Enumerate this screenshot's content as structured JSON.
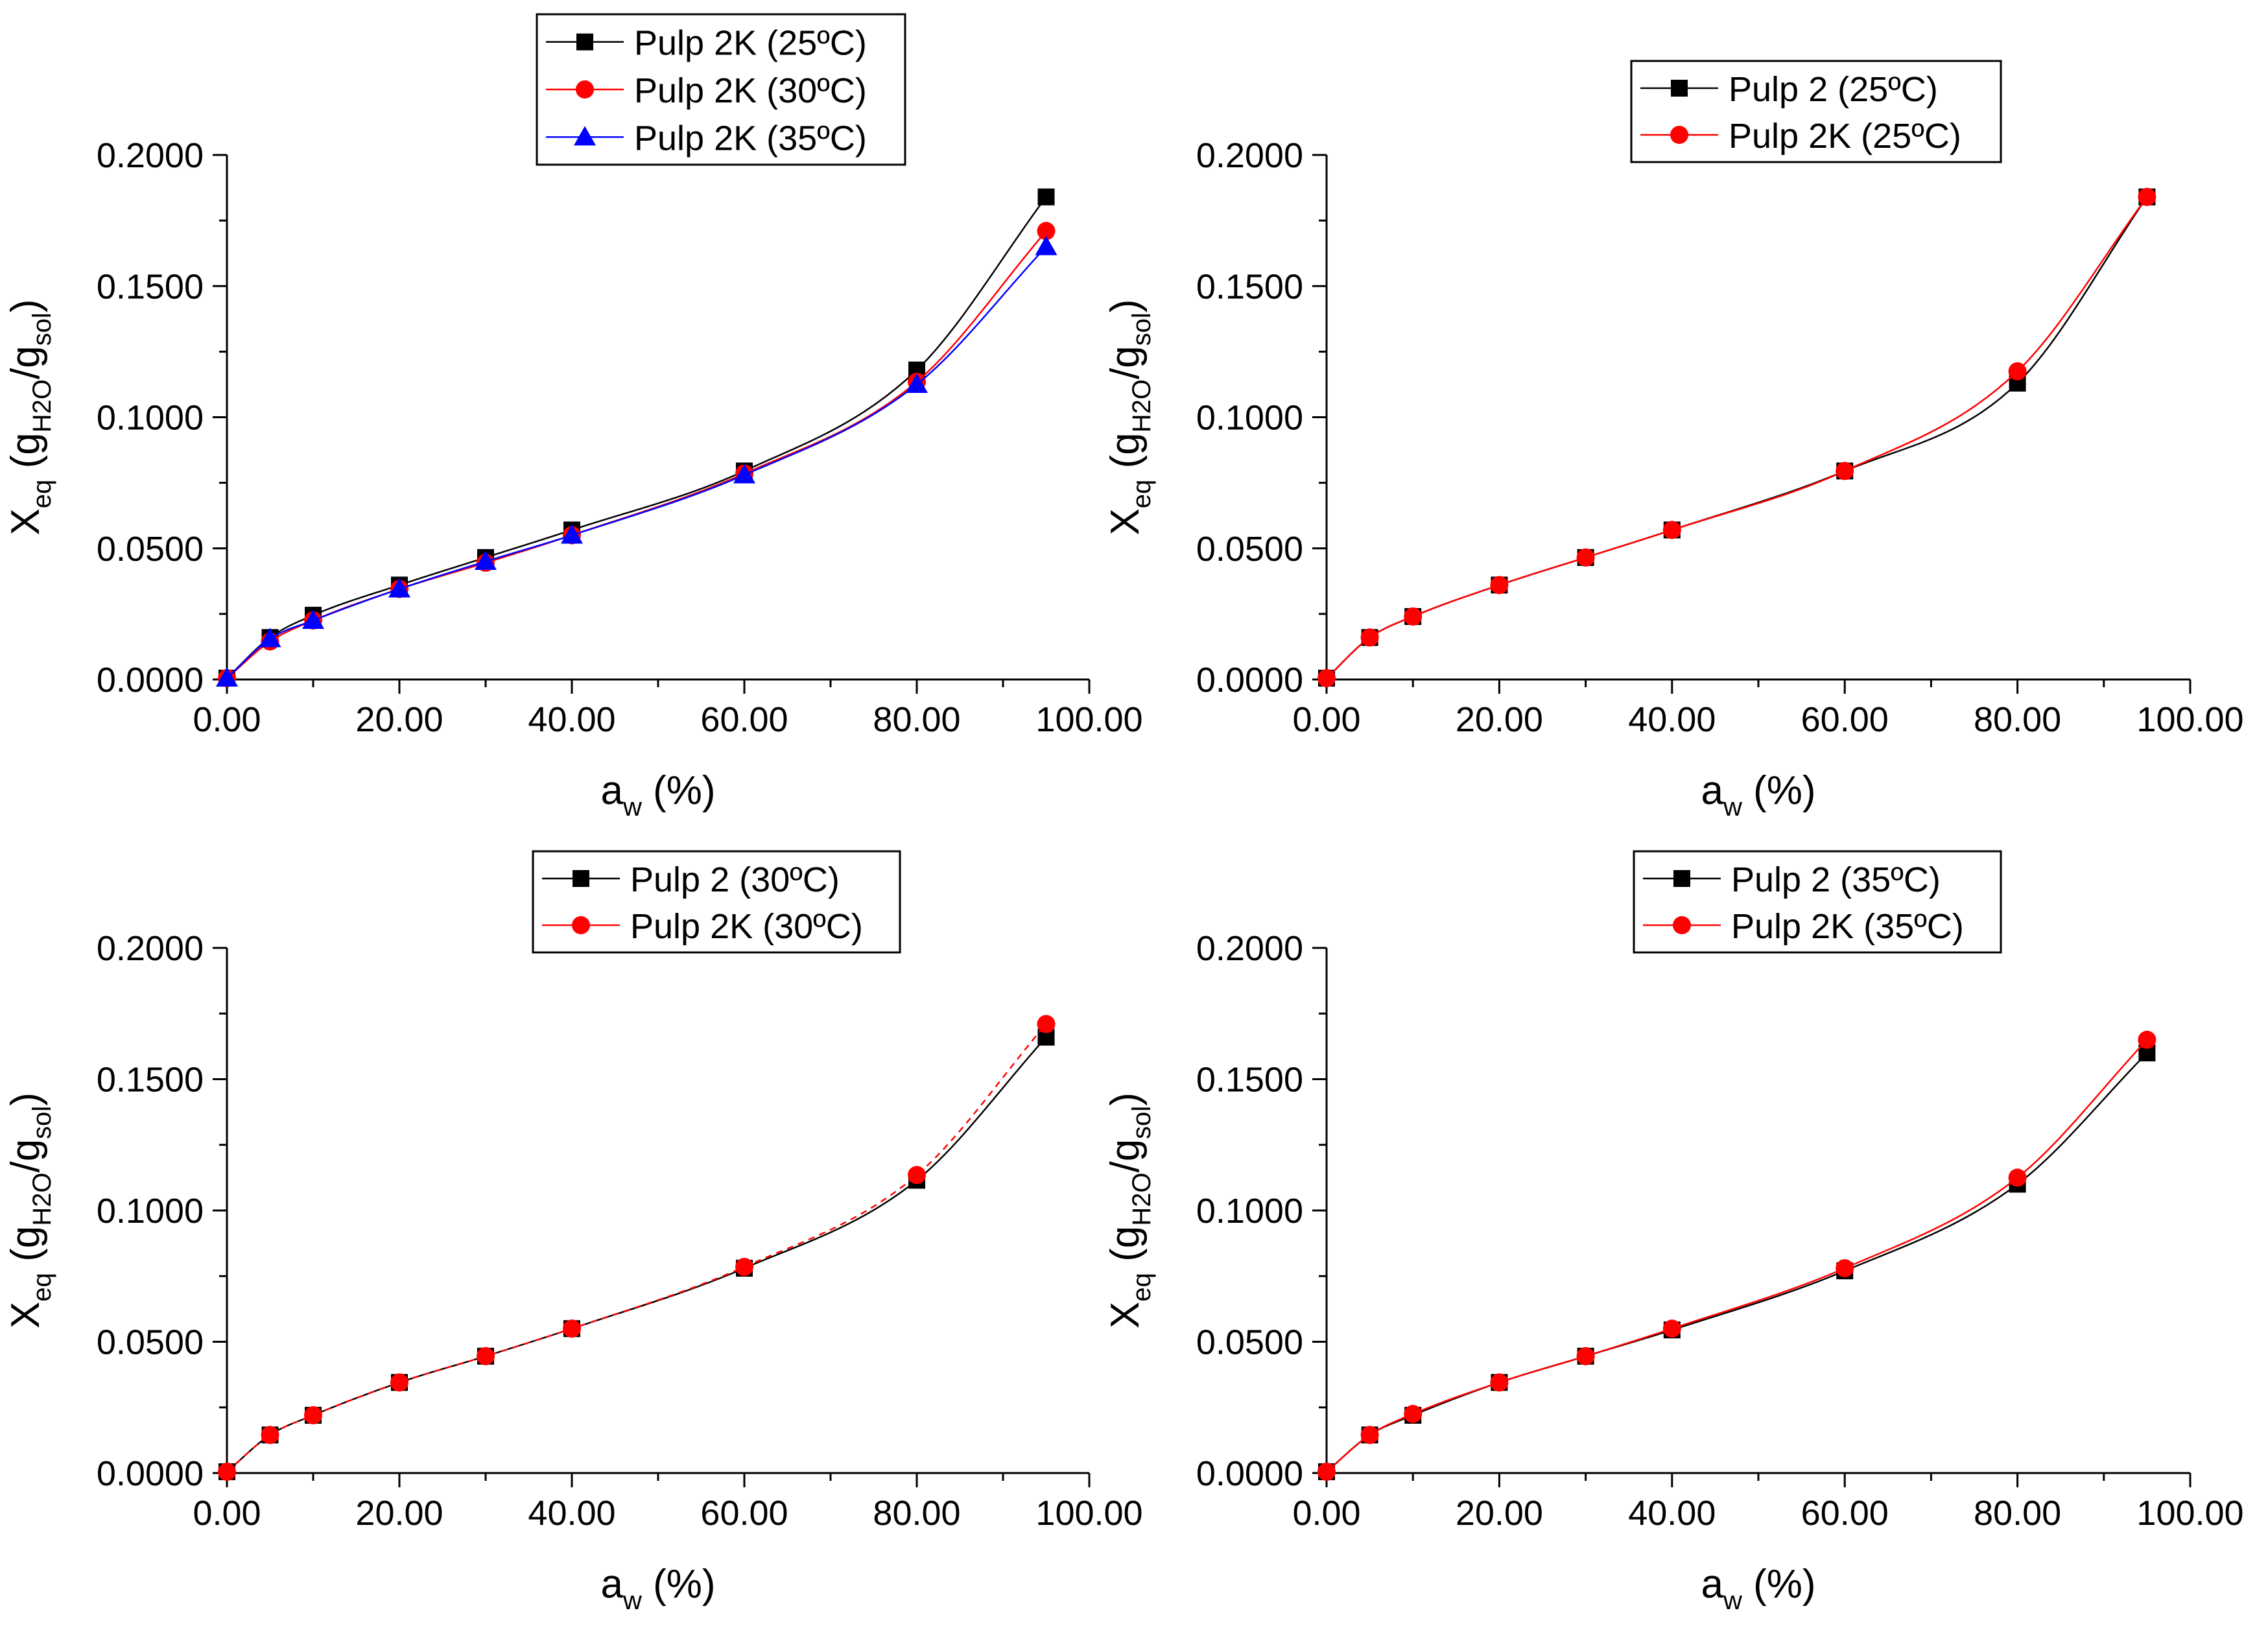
{
  "chart_data": [
    {
      "type": "scatter",
      "xlabel": {
        "main": "a",
        "sub": "w",
        "unit": " (%)"
      },
      "ylabel": {
        "main": "X",
        "sub": "eq",
        "open": " (g",
        "sub2": "H2O",
        "mid": "/g",
        "sub3": "sol",
        "close": ")"
      },
      "xlim": [
        0,
        100
      ],
      "ylim": [
        0,
        0.2
      ],
      "xticks": [
        "0.00",
        "20.00",
        "40.00",
        "60.00",
        "80.00",
        "100.00"
      ],
      "yticks": [
        "0.0000",
        "0.0500",
        "0.1000",
        "0.1500",
        "0.2000"
      ],
      "legend_position": "top-right",
      "x": [
        0,
        5,
        10,
        20,
        30,
        40,
        60,
        80,
        95
      ],
      "series": [
        {
          "name": "Pulp 2K (25ºC)",
          "color": "#000000",
          "marker": "square",
          "values": [
            0.0005,
            0.016,
            0.0245,
            0.036,
            0.0465,
            0.057,
            0.0795,
            0.118,
            0.184
          ]
        },
        {
          "name": "Pulp 2K (30ºC)",
          "color": "#ff0000",
          "marker": "circle",
          "values": [
            0.0005,
            0.0145,
            0.0225,
            0.0345,
            0.0445,
            0.055,
            0.0785,
            0.1135,
            0.171
          ]
        },
        {
          "name": "Pulp 2K (35ºC)",
          "color": "#0000ff",
          "marker": "triangle",
          "values": [
            0.0005,
            0.0155,
            0.0225,
            0.0345,
            0.045,
            0.055,
            0.078,
            0.1125,
            0.165
          ]
        }
      ]
    },
    {
      "type": "scatter",
      "xlabel": {
        "main": "a",
        "sub": "w",
        "unit": " (%)"
      },
      "ylabel": {
        "main": "X",
        "sub": "eq",
        "open": " (g",
        "sub2": "H2O",
        "mid": "/g",
        "sub3": "sol",
        "close": ")"
      },
      "xlim": [
        0,
        100
      ],
      "ylim": [
        0,
        0.2
      ],
      "xticks": [
        "0.00",
        "20.00",
        "40.00",
        "60.00",
        "80.00",
        "100.00"
      ],
      "yticks": [
        "0.0000",
        "0.0500",
        "0.1000",
        "0.1500",
        "0.2000"
      ],
      "legend_position": "top-right",
      "x": [
        0,
        5,
        10,
        20,
        30,
        40,
        60,
        80,
        95
      ],
      "series": [
        {
          "name": "Pulp 2 (25ºC)",
          "color": "#000000",
          "marker": "square",
          "values": [
            0.0005,
            0.016,
            0.024,
            0.036,
            0.0465,
            0.057,
            0.0795,
            0.113,
            0.184
          ]
        },
        {
          "name": "Pulp 2K (25ºC)",
          "color": "#ff0000",
          "marker": "circle",
          "values": [
            0.0005,
            0.016,
            0.024,
            0.036,
            0.0465,
            0.057,
            0.0795,
            0.1175,
            0.184
          ]
        }
      ]
    },
    {
      "type": "scatter",
      "xlabel": {
        "main": "a",
        "sub": "w",
        "unit": " (%)"
      },
      "ylabel": {
        "main": "X",
        "sub": "eq",
        "open": " (g",
        "sub2": "H2O",
        "mid": "/g",
        "sub3": "sol",
        "close": ")"
      },
      "xlim": [
        0,
        100
      ],
      "ylim": [
        0,
        0.2
      ],
      "xticks": [
        "0.00",
        "20.00",
        "40.00",
        "60.00",
        "80.00",
        "100.00"
      ],
      "yticks": [
        "0.0000",
        "0.0500",
        "0.1000",
        "0.1500",
        "0.2000"
      ],
      "legend_position": "top-right",
      "x": [
        0,
        5,
        10,
        20,
        30,
        40,
        60,
        80,
        95
      ],
      "series": [
        {
          "name": "Pulp 2 (30ºC)",
          "color": "#000000",
          "marker": "square",
          "values": [
            0.0005,
            0.0145,
            0.022,
            0.0345,
            0.0445,
            0.055,
            0.078,
            0.1115,
            0.166
          ]
        },
        {
          "name": "Pulp 2K (30ºC)",
          "color": "#ff0000",
          "marker": "circle",
          "values": [
            0.0005,
            0.0145,
            0.022,
            0.0345,
            0.0445,
            0.055,
            0.0785,
            0.1135,
            0.171
          ]
        }
      ]
    },
    {
      "type": "scatter",
      "xlabel": {
        "main": "a",
        "sub": "w",
        "unit": " (%)"
      },
      "ylabel": {
        "main": "X",
        "sub": "eq",
        "open": " (g",
        "sub2": "H2O",
        "mid": "/g",
        "sub3": "sol",
        "close": ")"
      },
      "xlim": [
        0,
        100
      ],
      "ylim": [
        0,
        0.2
      ],
      "xticks": [
        "0.00",
        "20.00",
        "40.00",
        "60.00",
        "80.00",
        "100.00"
      ],
      "yticks": [
        "0.0000",
        "0.0500",
        "0.1000",
        "0.1500",
        "0.2000"
      ],
      "legend_position": "top-right",
      "x": [
        0,
        5,
        10,
        20,
        30,
        40,
        60,
        80,
        95
      ],
      "series": [
        {
          "name": "Pulp 2 (35ºC)",
          "color": "#000000",
          "marker": "square",
          "values": [
            0.0005,
            0.0145,
            0.022,
            0.0345,
            0.0445,
            0.0545,
            0.077,
            0.11,
            0.16
          ]
        },
        {
          "name": "Pulp 2K (35ºC)",
          "color": "#ff0000",
          "marker": "circle",
          "values": [
            0.0005,
            0.0145,
            0.0225,
            0.0345,
            0.0445,
            0.055,
            0.078,
            0.1125,
            0.165
          ]
        }
      ]
    }
  ]
}
